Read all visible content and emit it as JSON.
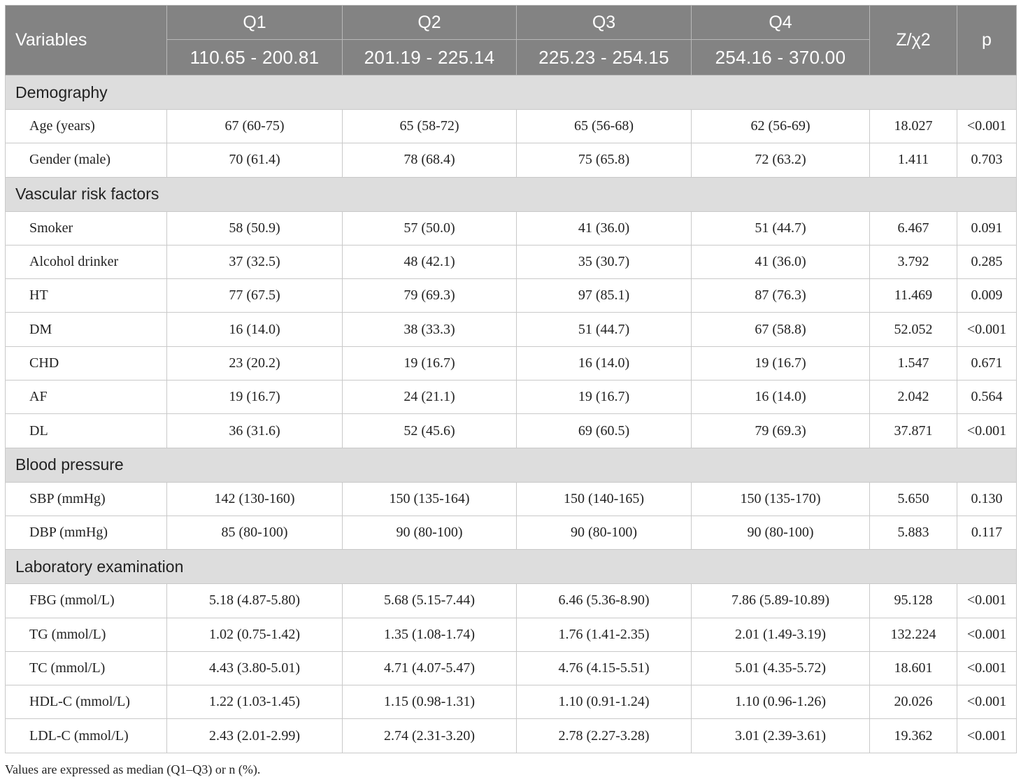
{
  "table": {
    "header": {
      "variables": "Variables",
      "stat": "Z/χ2",
      "p": "p",
      "quartiles": [
        {
          "label": "Q1",
          "range": "110.65 - 200.81"
        },
        {
          "label": "Q2",
          "range": "201.19 - 225.14"
        },
        {
          "label": "Q3",
          "range": "225.23 - 254.15"
        },
        {
          "label": "Q4",
          "range": "254.16 - 370.00"
        }
      ]
    },
    "sections": [
      {
        "title": "Demography",
        "rows": [
          {
            "label": "Age (years)",
            "q1": "67 (60-75)",
            "q2": "65 (58-72)",
            "q3": "65 (56-68)",
            "q4": "62 (56-69)",
            "stat": "18.027",
            "p": "<0.001"
          },
          {
            "label": "Gender (male)",
            "q1": "70 (61.4)",
            "q2": "78 (68.4)",
            "q3": "75 (65.8)",
            "q4": "72 (63.2)",
            "stat": "1.411",
            "p": "0.703"
          }
        ]
      },
      {
        "title": "Vascular risk factors",
        "rows": [
          {
            "label": "Smoker",
            "q1": "58 (50.9)",
            "q2": "57 (50.0)",
            "q3": "41 (36.0)",
            "q4": "51 (44.7)",
            "stat": "6.467",
            "p": "0.091"
          },
          {
            "label": "Alcohol drinker",
            "q1": "37 (32.5)",
            "q2": "48 (42.1)",
            "q3": "35 (30.7)",
            "q4": "41 (36.0)",
            "stat": "3.792",
            "p": "0.285"
          },
          {
            "label": "HT",
            "q1": "77 (67.5)",
            "q2": "79 (69.3)",
            "q3": "97 (85.1)",
            "q4": "87 (76.3)",
            "stat": "11.469",
            "p": "0.009"
          },
          {
            "label": "DM",
            "q1": "16 (14.0)",
            "q2": "38 (33.3)",
            "q3": "51 (44.7)",
            "q4": "67 (58.8)",
            "stat": "52.052",
            "p": "<0.001"
          },
          {
            "label": "CHD",
            "q1": "23 (20.2)",
            "q2": "19 (16.7)",
            "q3": "16 (14.0)",
            "q4": "19 (16.7)",
            "stat": "1.547",
            "p": "0.671"
          },
          {
            "label": "AF",
            "q1": "19 (16.7)",
            "q2": "24 (21.1)",
            "q3": "19 (16.7)",
            "q4": "16 (14.0)",
            "stat": "2.042",
            "p": "0.564"
          },
          {
            "label": "DL",
            "q1": "36 (31.6)",
            "q2": "52 (45.6)",
            "q3": "69 (60.5)",
            "q4": "79 (69.3)",
            "stat": "37.871",
            "p": "<0.001"
          }
        ]
      },
      {
        "title": "Blood pressure",
        "rows": [
          {
            "label": "SBP (mmHg)",
            "q1": "142 (130-160)",
            "q2": "150 (135-164)",
            "q3": "150 (140-165)",
            "q4": "150 (135-170)",
            "stat": "5.650",
            "p": "0.130"
          },
          {
            "label": "DBP (mmHg)",
            "q1": "85 (80-100)",
            "q2": "90 (80-100)",
            "q3": "90 (80-100)",
            "q4": "90 (80-100)",
            "stat": "5.883",
            "p": "0.117"
          }
        ]
      },
      {
        "title": "Laboratory examination",
        "rows": [
          {
            "label": "FBG (mmol/L)",
            "q1": "5.18 (4.87-5.80)",
            "q2": "5.68 (5.15-7.44)",
            "q3": "6.46 (5.36-8.90)",
            "q4": "7.86 (5.89-10.89)",
            "stat": "95.128",
            "p": "<0.001"
          },
          {
            "label": "TG (mmol/L)",
            "q1": "1.02 (0.75-1.42)",
            "q2": "1.35 (1.08-1.74)",
            "q3": "1.76 (1.41-2.35)",
            "q4": "2.01 (1.49-3.19)",
            "stat": "132.224",
            "p": "<0.001"
          },
          {
            "label": "TC (mmol/L)",
            "q1": "4.43 (3.80-5.01)",
            "q2": "4.71 (4.07-5.47)",
            "q3": "4.76 (4.15-5.51)",
            "q4": "5.01 (4.35-5.72)",
            "stat": "18.601",
            "p": "<0.001"
          },
          {
            "label": "HDL-C (mmol/L)",
            "q1": "1.22 (1.03-1.45)",
            "q2": "1.15 (0.98-1.31)",
            "q3": "1.10 (0.91-1.24)",
            "q4": "1.10 (0.96-1.26)",
            "stat": "20.026",
            "p": "<0.001"
          },
          {
            "label": "LDL-C (mmol/L)",
            "q1": "2.43 (2.01-2.99)",
            "q2": "2.74 (2.31-3.20)",
            "q3": "2.78 (2.27-3.28)",
            "q4": "3.01 (2.39-3.61)",
            "stat": "19.362",
            "p": "<0.001"
          }
        ]
      }
    ],
    "footnote": "Values are expressed as median (Q1–Q3) or n (%)."
  }
}
